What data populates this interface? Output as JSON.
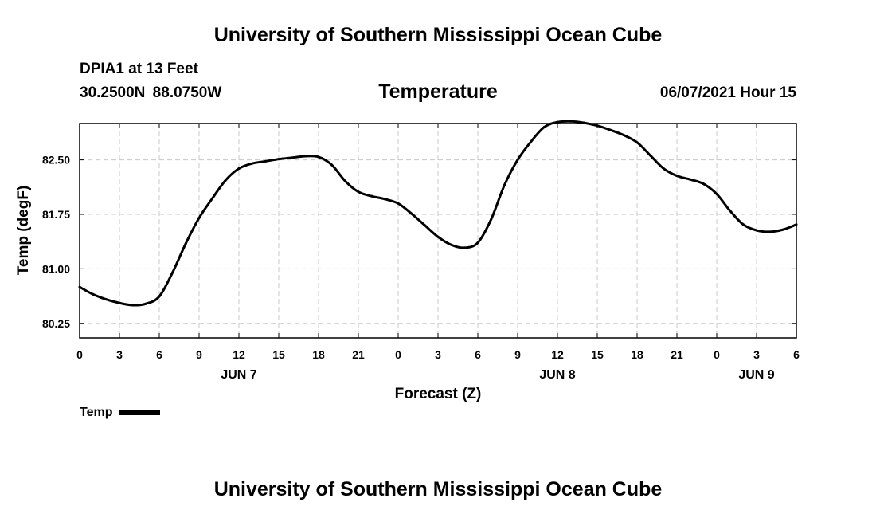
{
  "header": {
    "title": "University of Southern Mississippi Ocean Cube",
    "station": "DPIA1 at 13 Feet",
    "coordinates": "30.2500N  88.0750W",
    "variable_title": "Temperature",
    "run_time": "06/07/2021 Hour 15"
  },
  "legend": {
    "label": "Temp"
  },
  "footer": {
    "title": "University of Southern Mississippi Ocean Cube"
  },
  "colors": {
    "line": "#000000",
    "grid": "#c8c8c8",
    "background": "#ffffff"
  },
  "chart_data": {
    "type": "line",
    "title": "Temperature",
    "xlabel": "Forecast (Z)",
    "ylabel": "Temp (degF)",
    "xlim": [
      0,
      54
    ],
    "ylim": [
      80.05,
      83.0
    ],
    "grid": true,
    "legend_position": "bottom-left",
    "x_ticks": [
      0,
      3,
      6,
      9,
      12,
      15,
      18,
      21,
      24,
      27,
      30,
      33,
      36,
      39,
      42,
      45,
      48,
      51,
      54
    ],
    "x_tick_labels": [
      "0",
      "3",
      "6",
      "9",
      "12",
      "15",
      "18",
      "21",
      "0",
      "3",
      "6",
      "9",
      "12",
      "15",
      "18",
      "21",
      "0",
      "3",
      "6"
    ],
    "date_labels": [
      {
        "x": 12,
        "label": "JUN 7"
      },
      {
        "x": 36,
        "label": "JUN 8"
      },
      {
        "x": 51,
        "label": "JUN 9"
      }
    ],
    "y_ticks": [
      80.25,
      81.0,
      81.75,
      82.5
    ],
    "y_tick_labels": [
      "80.25",
      "81.00",
      "81.75",
      "82.50"
    ],
    "series": [
      {
        "name": "Temp",
        "x": [
          0,
          1,
          2,
          3,
          4,
          5,
          6,
          7,
          8,
          9,
          10,
          11,
          12,
          13,
          14,
          15,
          16,
          17,
          18,
          19,
          20,
          21,
          22,
          23,
          24,
          25,
          26,
          27,
          28,
          29,
          30,
          31,
          32,
          33,
          34,
          35,
          36,
          37,
          38,
          39,
          40,
          41,
          42,
          43,
          44,
          45,
          46,
          47,
          48,
          49,
          50,
          51,
          52,
          53,
          54
        ],
        "y": [
          80.75,
          80.65,
          80.58,
          80.53,
          80.5,
          80.52,
          80.62,
          80.95,
          81.35,
          81.7,
          81.97,
          82.22,
          82.38,
          82.45,
          82.48,
          82.51,
          82.53,
          82.55,
          82.54,
          82.43,
          82.21,
          82.06,
          82.0,
          81.96,
          81.9,
          81.76,
          81.6,
          81.44,
          81.33,
          81.29,
          81.36,
          81.68,
          82.15,
          82.5,
          82.75,
          82.95,
          83.02,
          83.03,
          83.01,
          82.97,
          82.91,
          82.84,
          82.74,
          82.56,
          82.38,
          82.28,
          82.23,
          82.17,
          82.03,
          81.8,
          81.61,
          81.53,
          81.51,
          81.54,
          81.61
        ]
      }
    ]
  }
}
